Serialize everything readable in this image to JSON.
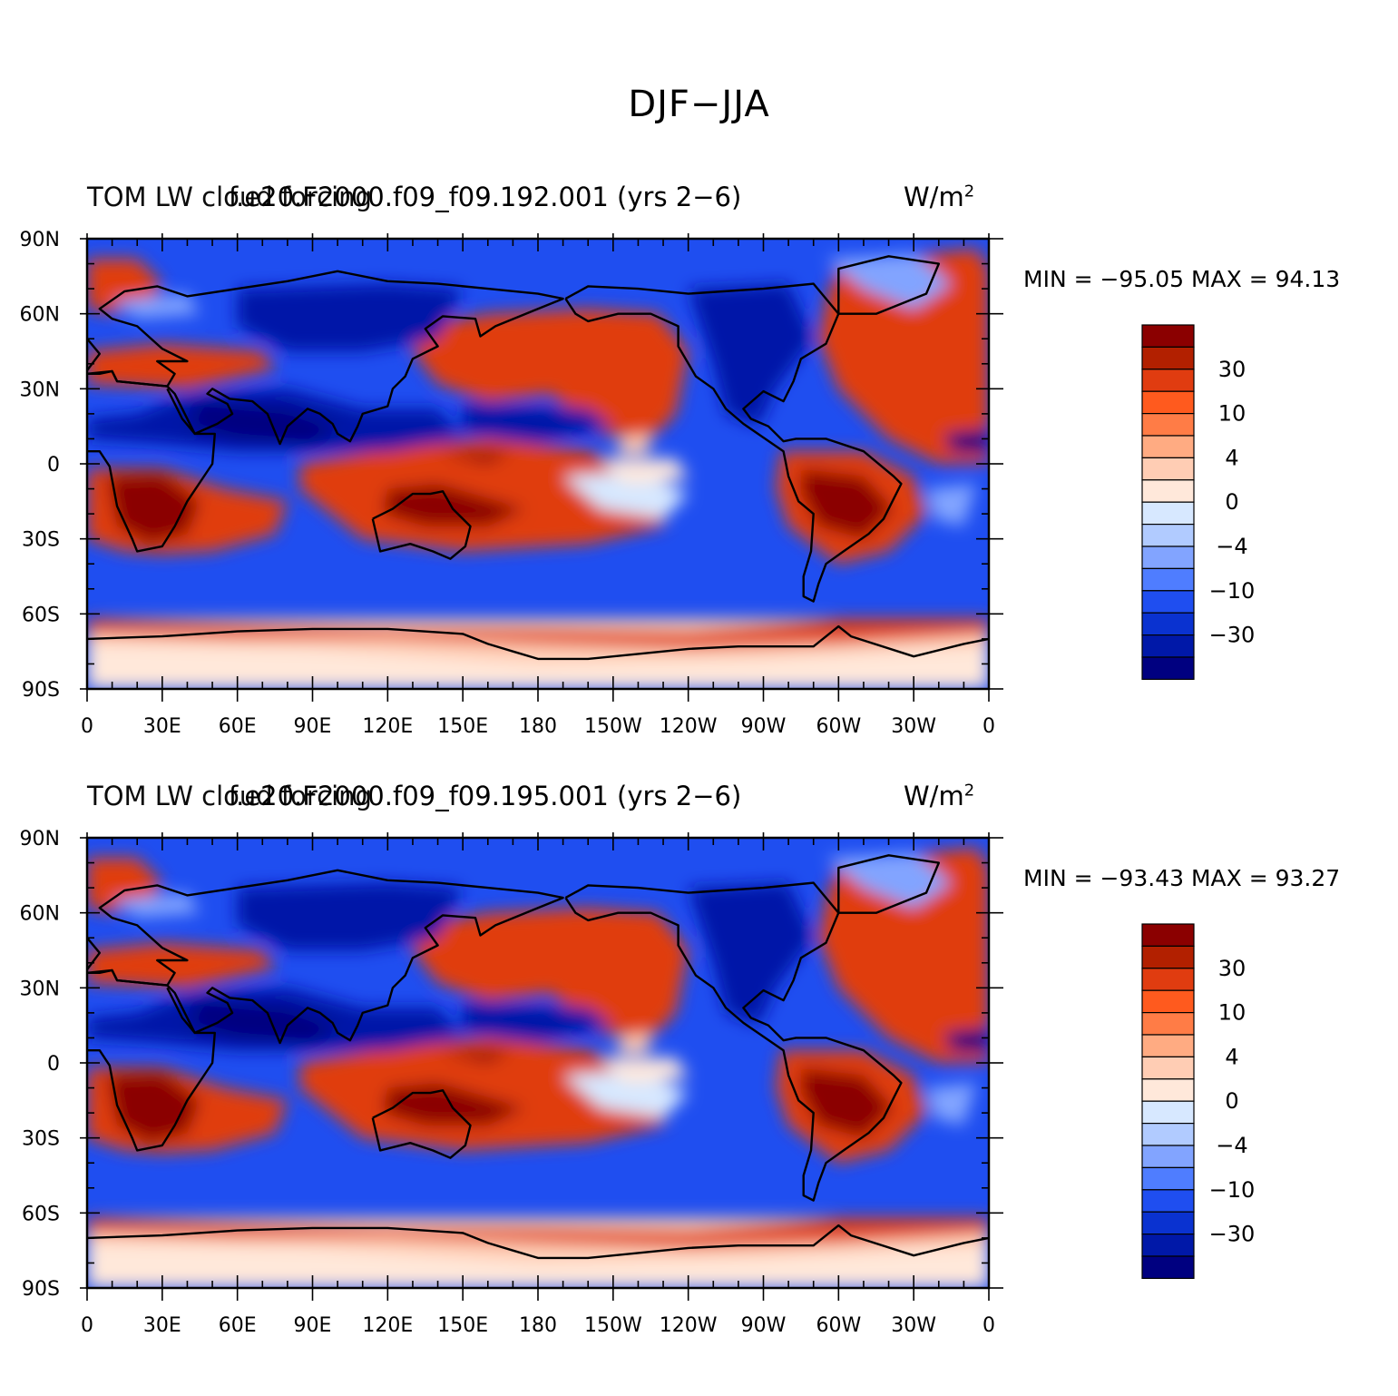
{
  "title": "DJF−JJA",
  "panels": [
    {
      "left_label": "TOM LW cloud forcing",
      "center_label": "f.e20.F2000.f09_f09.192.001 (yrs 2−6)",
      "units_base": "W/m",
      "units_exp": "2",
      "min_label": "MIN = −95.05",
      "max_label": "MAX =   94.13",
      "min_value": -95.05,
      "max_value": 94.13
    },
    {
      "left_label": "TOM LW cloud forcing",
      "center_label": "f.e20.F2000.f09_f09.195.001 (yrs 2−6)",
      "units_base": "W/m",
      "units_exp": "2",
      "min_label": "MIN = −93.43",
      "max_label": "MAX =   93.27",
      "min_value": -93.43,
      "max_value": 93.27
    }
  ],
  "lat_ticks": [
    "90N",
    "60N",
    "30N",
    "0",
    "30S",
    "60S",
    "90S"
  ],
  "lon_ticks": [
    "0",
    "30E",
    "60E",
    "90E",
    "120E",
    "150E",
    "180",
    "150W",
    "120W",
    "90W",
    "60W",
    "30W",
    "0"
  ],
  "colorbar": {
    "colors": [
      "#8b0000",
      "#b22000",
      "#e03c10",
      "#ff5a1e",
      "#ff7c46",
      "#ffab82",
      "#ffcdb4",
      "#ffe8da",
      "#d7e8ff",
      "#b1cbff",
      "#82a4ff",
      "#4f7dff",
      "#1f4ef0",
      "#0a32d0",
      "#0018a8",
      "#000080"
    ],
    "labels": [
      "30",
      "10",
      "4",
      "0",
      "−4",
      "−10",
      "−30"
    ],
    "label_after_box": [
      2,
      4,
      6,
      8,
      10,
      12,
      14
    ]
  },
  "field_colors": {
    "ocean_blue": "#1f4ef0",
    "deep_blue": "#0018a8",
    "darkest_blue": "#000080",
    "light_blue": "#82a4ff",
    "pale_blue": "#d7e8ff",
    "red": "#e03c10",
    "dark_red": "#8b0000",
    "pale_orange": "#ffcdb4",
    "cream": "#ffe8da"
  }
}
